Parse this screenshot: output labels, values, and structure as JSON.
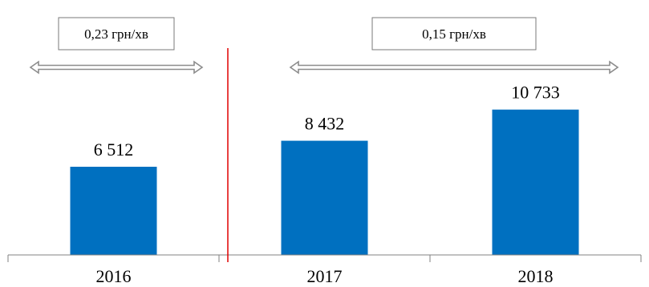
{
  "chart_data": {
    "type": "bar",
    "categories": [
      "2016",
      "2017",
      "2018"
    ],
    "values": [
      6512,
      8432,
      10733
    ],
    "value_labels": [
      "6 512",
      "8 432",
      "10 733"
    ],
    "title": "",
    "xlabel": "",
    "ylabel": "",
    "grid": false,
    "legend": "none",
    "colors": {
      "bar": "#0070C0",
      "divider": "#E00000",
      "axis": "#808080",
      "arrow_stroke": "#8C8C8C"
    },
    "annotations": [
      {
        "text": "0,23 грн/хв",
        "applies_to": [
          "2016"
        ]
      },
      {
        "text": "0,15 грн/хв",
        "applies_to": [
          "2017",
          "2018"
        ]
      }
    ]
  }
}
